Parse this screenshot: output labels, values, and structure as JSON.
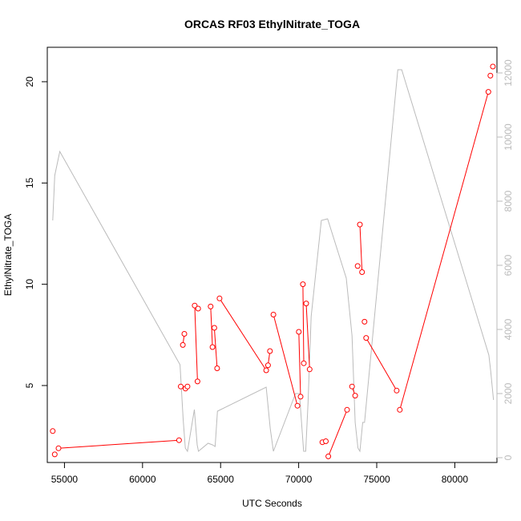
{
  "chart_data": {
    "type": "line",
    "title": "ORCAS RF03 EthylNitrate_TOGA",
    "xlabel": "UTC Seconds",
    "ylabel": "EthylNitrate_TOGA",
    "xlim": [
      53900,
      82700
    ],
    "ylim": [
      1.2,
      21.7
    ],
    "y2lim": [
      -150,
      12800
    ],
    "x_ticks": [
      55000,
      60000,
      65000,
      70000,
      75000,
      80000
    ],
    "y_ticks": [
      5,
      10,
      15,
      20
    ],
    "y2_ticks": [
      0,
      2000,
      4000,
      6000,
      8000,
      10000,
      12000
    ],
    "grid": false,
    "series": [
      {
        "color": "#ff0000",
        "axis": "left",
        "style": "line+points",
        "segments": [
          [
            [
              54250,
              2.75
            ]
          ],
          [
            [
              54380,
              1.6
            ]
          ],
          [
            [
              54620,
              1.9
            ],
            [
              62340,
              2.3
            ]
          ],
          [
            [
              62450,
              4.95
            ]
          ],
          [
            [
              62580,
              7.0
            ],
            [
              62680,
              7.55
            ]
          ],
          [
            [
              62750,
              4.85
            ],
            [
              62880,
              4.95
            ]
          ],
          [
            [
              63340,
              8.95
            ],
            [
              63520,
              5.2
            ]
          ],
          [
            [
              63560,
              8.8
            ]
          ],
          [
            [
              64360,
              8.9
            ],
            [
              64480,
              6.9
            ]
          ],
          [
            [
              64600,
              7.85
            ],
            [
              64780,
              5.85
            ]
          ],
          [
            [
              64930,
              9.3
            ],
            [
              67920,
              5.75
            ]
          ],
          [
            [
              68040,
              6.0
            ],
            [
              68160,
              6.7
            ]
          ],
          [
            [
              68380,
              8.5
            ],
            [
              69920,
              4.0
            ]
          ],
          [
            [
              70010,
              7.65
            ],
            [
              70120,
              4.45
            ]
          ],
          [
            [
              70270,
              10.0
            ],
            [
              70330,
              6.1
            ]
          ],
          [
            [
              70480,
              9.05
            ],
            [
              70700,
              5.8
            ]
          ],
          [
            [
              71520,
              2.2
            ],
            [
              71740,
              2.25
            ]
          ],
          [
            [
              71900,
              1.5
            ],
            [
              73100,
              3.8
            ]
          ],
          [
            [
              73420,
              4.95
            ],
            [
              73620,
              4.5
            ]
          ],
          [
            [
              73780,
              10.9
            ]
          ],
          [
            [
              73920,
              12.95
            ],
            [
              74060,
              10.6
            ]
          ],
          [
            [
              74220,
              8.15
            ]
          ],
          [
            [
              74320,
              7.35
            ],
            [
              76280,
              4.75
            ]
          ],
          [
            [
              76480,
              3.8
            ],
            [
              82150,
              19.5
            ]
          ],
          [
            [
              82280,
              20.3
            ]
          ],
          [
            [
              82440,
              20.75
            ]
          ]
        ]
      },
      {
        "color": "#bbbbbb",
        "axis": "right",
        "style": "line",
        "points": [
          [
            54250,
            7400
          ],
          [
            54380,
            8800
          ],
          [
            54700,
            9550
          ],
          [
            62400,
            2900
          ],
          [
            62600,
            1200
          ],
          [
            62740,
            300
          ],
          [
            62880,
            200
          ],
          [
            63320,
            1500
          ],
          [
            63500,
            400
          ],
          [
            63580,
            200
          ],
          [
            64200,
            450
          ],
          [
            64480,
            400
          ],
          [
            64650,
            350
          ],
          [
            64800,
            1450
          ],
          [
            67920,
            2200
          ],
          [
            68180,
            900
          ],
          [
            68380,
            200
          ],
          [
            69800,
            2000
          ],
          [
            70050,
            2000
          ],
          [
            70320,
            200
          ],
          [
            70450,
            200
          ],
          [
            70600,
            1700
          ],
          [
            70800,
            4400
          ],
          [
            71450,
            7400
          ],
          [
            71850,
            7450
          ],
          [
            73050,
            5600
          ],
          [
            73420,
            3800
          ],
          [
            73620,
            1100
          ],
          [
            73800,
            300
          ],
          [
            73920,
            200
          ],
          [
            74100,
            1100
          ],
          [
            74220,
            1100
          ],
          [
            76350,
            12100
          ],
          [
            76600,
            12100
          ],
          [
            82180,
            3200
          ],
          [
            82300,
            2700
          ],
          [
            82480,
            1800
          ]
        ]
      }
    ]
  }
}
